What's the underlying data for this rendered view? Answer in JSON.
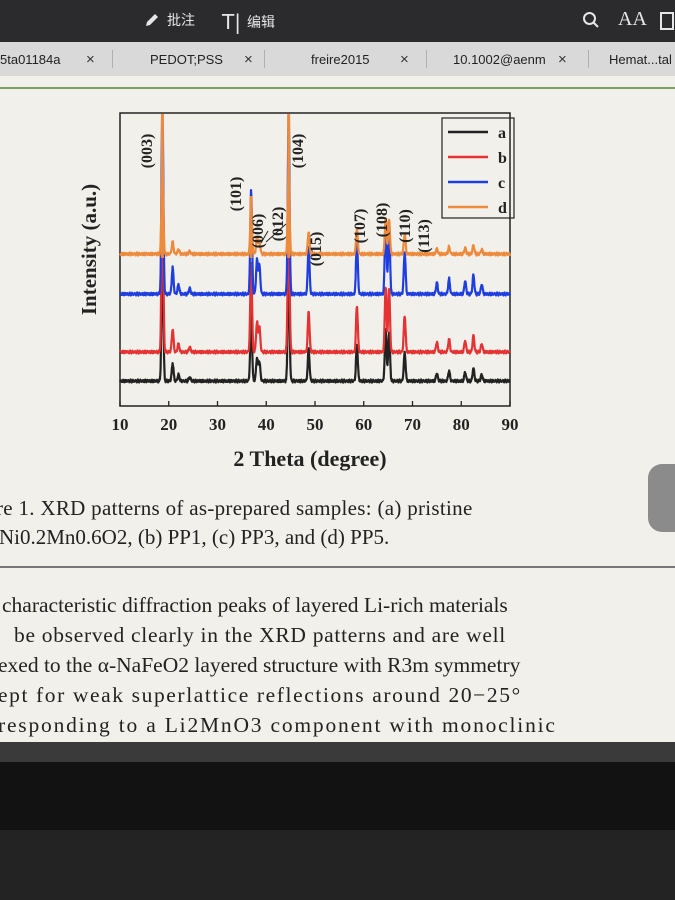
{
  "toolbar": {
    "annotate_label": "批注",
    "edit_label": "编辑",
    "text_size_label": "AA"
  },
  "tabs": [
    {
      "label": "5ta01184a"
    },
    {
      "label": "PEDOT;PSS"
    },
    {
      "label": "freire2015"
    },
    {
      "label": "10.1002@aenm"
    },
    {
      "label": "Hemat...tal"
    }
  ],
  "tab_close_glyph": "×",
  "chart_data": {
    "type": "line",
    "xlabel": "2 Theta (degree)",
    "ylabel": "Intensity (a.u.)",
    "xlim": [
      10,
      90
    ],
    "xticks": [
      "10",
      "20",
      "30",
      "40",
      "50",
      "60",
      "70",
      "80",
      "90"
    ],
    "legend": {
      "placement": "top-right",
      "entries": [
        "a",
        "b",
        "c",
        "d"
      ]
    },
    "series": [
      {
        "name": "a",
        "color": "#222222"
      },
      {
        "name": "b",
        "color": "#e53232"
      },
      {
        "name": "c",
        "color": "#1f3ee0"
      },
      {
        "name": "d",
        "color": "#ee8a3c"
      }
    ],
    "peaks": [
      {
        "label": "(003)",
        "x": 18.7
      },
      {
        "label": "(101)",
        "x": 36.9
      },
      {
        "label": "(006)",
        "x": 38.1
      },
      {
        "label": "(012)",
        "x": 38.4
      },
      {
        "label": "(104)",
        "x": 44.6
      },
      {
        "label": "(015)",
        "x": 48.8
      },
      {
        "label": "(107)",
        "x": 58.6
      },
      {
        "label": "(108)",
        "x": 64.6
      },
      {
        "label": "(110)",
        "x": 65.3
      },
      {
        "label": "(113)",
        "x": 68.6
      }
    ]
  },
  "caption": {
    "line1": "re 1. XRD patterns of as-prepared samples: (a) pristine",
    "line2": "Ni0.2Mn0.6O2, (b) PP1, (c) PP3, and (d) PP5."
  },
  "body": {
    "line1": "characteristic diffraction peaks of layered Li-rich materials",
    "line2": "be observed clearly in the XRD patterns and are well",
    "line3": "exed to the α-NaFeO2 layered structure with R3m symmetry",
    "line4": "ept for weak superlattice reflections around 20−25°",
    "line5": "responding to a Li2MnO3 component with monoclinic"
  },
  "colors": {
    "accent_rule": "#7ea05c",
    "page_bg": "#f1f0ea"
  }
}
